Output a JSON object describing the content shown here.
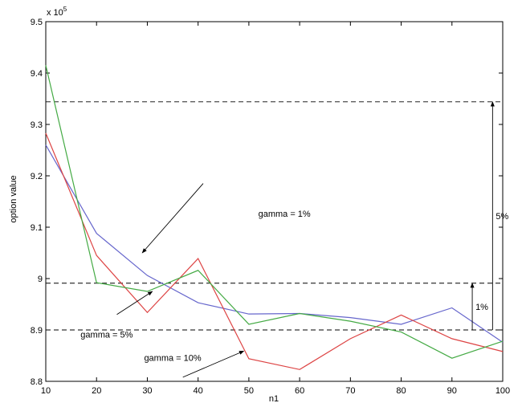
{
  "chart_data": {
    "type": "line",
    "title": "",
    "xlabel": "n1",
    "ylabel": "option value",
    "y_multiplier_label": "x 10",
    "y_multiplier_exponent": "5",
    "xlim": [
      10,
      100
    ],
    "ylim": [
      8.8,
      9.5
    ],
    "x_ticks": [
      10,
      20,
      30,
      40,
      50,
      60,
      70,
      80,
      90,
      100
    ],
    "y_ticks": [
      "8.8",
      "8.9",
      "9",
      "9.1",
      "9.2",
      "9.3",
      "9.4",
      "9.5"
    ],
    "grid": false,
    "x": [
      10,
      20,
      30,
      40,
      50,
      60,
      70,
      80,
      90,
      100
    ],
    "series": [
      {
        "color": "#6666cc",
        "values": [
          9.26,
          9.088,
          9.006,
          8.953,
          8.931,
          8.932,
          8.924,
          8.911,
          8.943,
          8.876
        ]
      },
      {
        "color": "#dd4444",
        "values": [
          9.283,
          9.045,
          8.934,
          9.039,
          8.844,
          8.823,
          8.883,
          8.929,
          8.883,
          8.858
        ]
      },
      {
        "color": "#44aa44",
        "values": [
          9.415,
          8.992,
          8.975,
          9.016,
          8.911,
          8.932,
          8.917,
          8.896,
          8.845,
          8.878
        ]
      }
    ],
    "reference_lines": [
      9.344,
      8.991,
      8.9
    ],
    "annotations": [
      {
        "text": "gamma = 1%",
        "text_pos": [
          57,
          9.12
        ],
        "arrow_from": [
          41,
          9.185
        ],
        "arrow_to": [
          29,
          9.05
        ]
      },
      {
        "text": "gamma = 5%",
        "text_pos": [
          22,
          8.885
        ],
        "arrow_from": [
          24,
          8.93
        ],
        "arrow_to": [
          31,
          8.975
        ]
      },
      {
        "text": "gamma = 10%",
        "text_pos": [
          35,
          8.84
        ],
        "arrow_from": [
          37,
          8.808
        ],
        "arrow_to": [
          49,
          8.859
        ]
      }
    ],
    "range_markers": [
      {
        "text": "5%",
        "x": 98,
        "from": 8.9,
        "to": 9.344
      },
      {
        "text": "1%",
        "x": 94,
        "from": 8.9,
        "to": 8.991
      }
    ]
  }
}
